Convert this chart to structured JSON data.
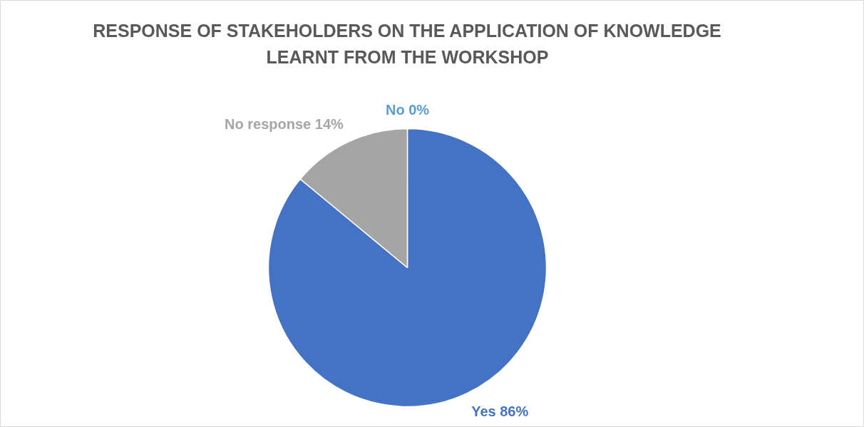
{
  "chart_data": {
    "type": "pie",
    "title": "RESPONSE OF STAKEHOLDERS ON THE APPLICATION OF KNOWLEDGE LEARNT FROM THE WORKSHOP",
    "categories": [
      "No",
      "Yes",
      "No response"
    ],
    "values": [
      0,
      86,
      14
    ],
    "colors": [
      "#5b9bd5",
      "#4472c4",
      "#a5a5a5"
    ],
    "value_labels": [
      "0%",
      "86%",
      "14%"
    ],
    "legend": false
  }
}
